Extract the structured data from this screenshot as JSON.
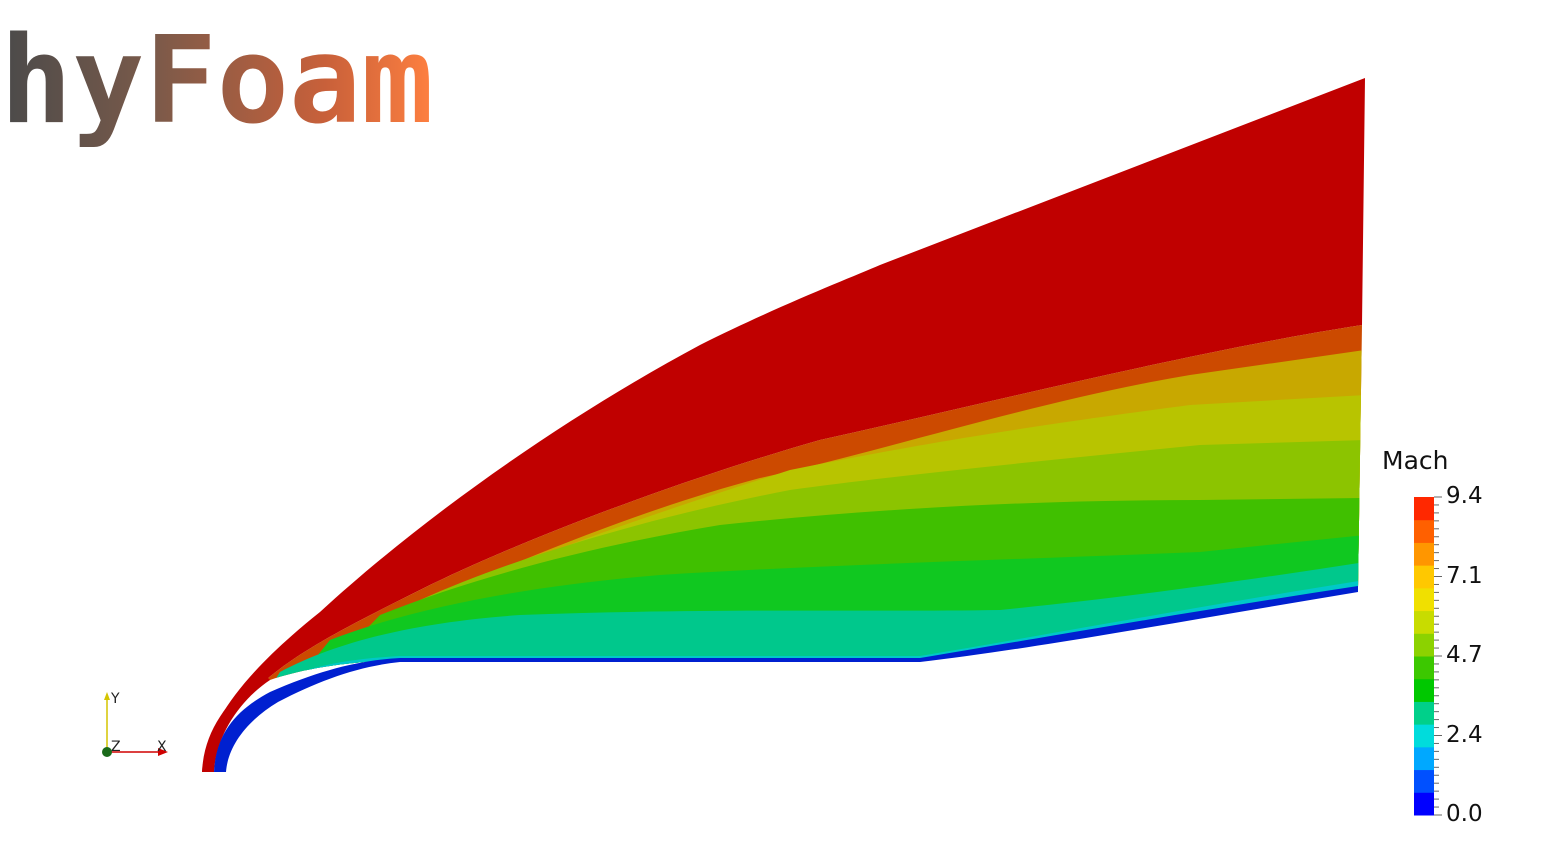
{
  "logo": {
    "text": "hyFoam",
    "gradient": [
      "#4a4a4a",
      "#7a5a4a",
      "#c8603a",
      "#ff8040"
    ]
  },
  "colorbar": {
    "title": "Mach",
    "min": 0.0,
    "max": 9.4,
    "tick_labels": [
      "9.4",
      "7.1",
      "4.7",
      "2.4",
      "0.0"
    ],
    "colors": [
      "#0000ff",
      "#0050ff",
      "#00a8ff",
      "#00dcdc",
      "#00d08a",
      "#00c800",
      "#3cc800",
      "#8cd200",
      "#c8dc00",
      "#f0e000",
      "#ffc800",
      "#ff9600",
      "#ff6000",
      "#ff2800"
    ]
  },
  "axes": {
    "y_label": "Y",
    "z_label": "Z",
    "x_label": "X"
  },
  "field_colors": {
    "freestream": "#c00000",
    "orange": "#cc4a00",
    "olive": "#c8a800",
    "yellow": "#b8c400",
    "lightgreen": "#8cc400",
    "green": "#40c000",
    "brightgreen": "#10c820",
    "teal": "#00c88c",
    "cyan": "#00c8c8",
    "blue": "#0020d0"
  }
}
